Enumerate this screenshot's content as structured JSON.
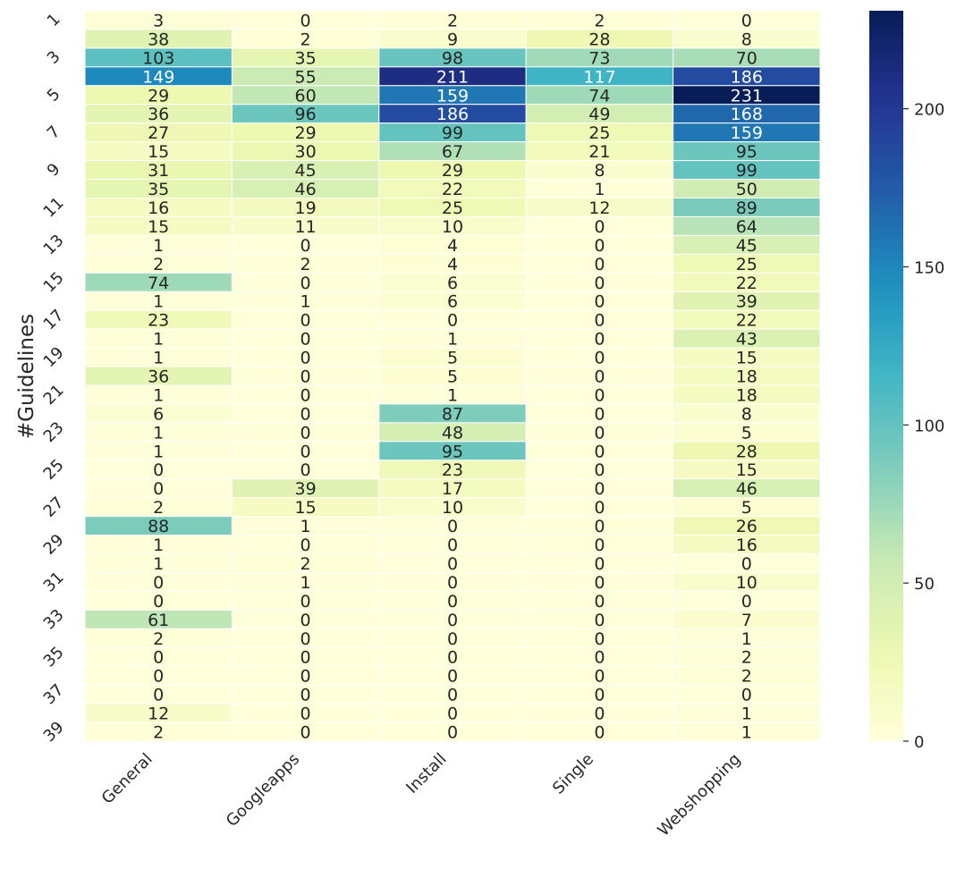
{
  "chart_data": {
    "type": "heatmap",
    "title": "",
    "xlabel": "",
    "ylabel": "#Guidelines",
    "categories": [
      "General",
      "Googleapps",
      "Install",
      "Single",
      "Webshopping"
    ],
    "row_labels": [
      "1",
      "2",
      "3",
      "4",
      "5",
      "6",
      "7",
      "8",
      "9",
      "10",
      "11",
      "12",
      "13",
      "14",
      "15",
      "16",
      "17",
      "18",
      "19",
      "20",
      "21",
      "22",
      "23",
      "24",
      "25",
      "26",
      "27",
      "28",
      "29",
      "30",
      "31",
      "32",
      "33",
      "34",
      "35",
      "36",
      "37",
      "38",
      "39"
    ],
    "visible_row_ticks": [
      "1",
      "3",
      "5",
      "7",
      "9",
      "11",
      "13",
      "15",
      "17",
      "19",
      "21",
      "23",
      "25",
      "27",
      "29",
      "31",
      "33",
      "35",
      "37",
      "39"
    ],
    "values": [
      [
        3,
        0,
        2,
        2,
        0
      ],
      [
        38,
        2,
        9,
        28,
        8
      ],
      [
        103,
        35,
        98,
        73,
        70
      ],
      [
        149,
        55,
        211,
        117,
        186
      ],
      [
        29,
        60,
        159,
        74,
        231
      ],
      [
        36,
        96,
        186,
        49,
        168
      ],
      [
        27,
        29,
        99,
        25,
        159
      ],
      [
        15,
        30,
        67,
        21,
        95
      ],
      [
        31,
        45,
        29,
        8,
        99
      ],
      [
        35,
        46,
        22,
        1,
        50
      ],
      [
        16,
        19,
        25,
        12,
        89
      ],
      [
        15,
        11,
        10,
        0,
        64
      ],
      [
        1,
        0,
        4,
        0,
        45
      ],
      [
        2,
        2,
        4,
        0,
        25
      ],
      [
        74,
        0,
        6,
        0,
        22
      ],
      [
        1,
        1,
        6,
        0,
        39
      ],
      [
        23,
        0,
        0,
        0,
        22
      ],
      [
        1,
        0,
        1,
        0,
        43
      ],
      [
        1,
        0,
        5,
        0,
        15
      ],
      [
        36,
        0,
        5,
        0,
        18
      ],
      [
        1,
        0,
        1,
        0,
        18
      ],
      [
        6,
        0,
        87,
        0,
        8
      ],
      [
        1,
        0,
        48,
        0,
        5
      ],
      [
        1,
        0,
        95,
        0,
        28
      ],
      [
        0,
        0,
        23,
        0,
        15
      ],
      [
        0,
        39,
        17,
        0,
        46
      ],
      [
        2,
        15,
        10,
        0,
        5
      ],
      [
        88,
        1,
        0,
        0,
        26
      ],
      [
        1,
        0,
        0,
        0,
        16
      ],
      [
        1,
        2,
        0,
        0,
        0
      ],
      [
        0,
        1,
        0,
        0,
        10
      ],
      [
        0,
        0,
        0,
        0,
        0
      ],
      [
        61,
        0,
        0,
        0,
        7
      ],
      [
        2,
        0,
        0,
        0,
        1
      ],
      [
        0,
        0,
        0,
        0,
        2
      ],
      [
        0,
        0,
        0,
        0,
        2
      ],
      [
        0,
        0,
        0,
        0,
        0
      ],
      [
        12,
        0,
        0,
        0,
        1
      ],
      [
        2,
        0,
        0,
        0,
        1
      ]
    ],
    "colorbar": {
      "colormap": "YlGnBu",
      "vmin": 0,
      "vmax": 231,
      "ticks": [
        0,
        50,
        100,
        150,
        200
      ],
      "tick_labels": [
        "0",
        "50",
        "100",
        "150",
        "200"
      ]
    },
    "grid": false,
    "annotated": true
  }
}
